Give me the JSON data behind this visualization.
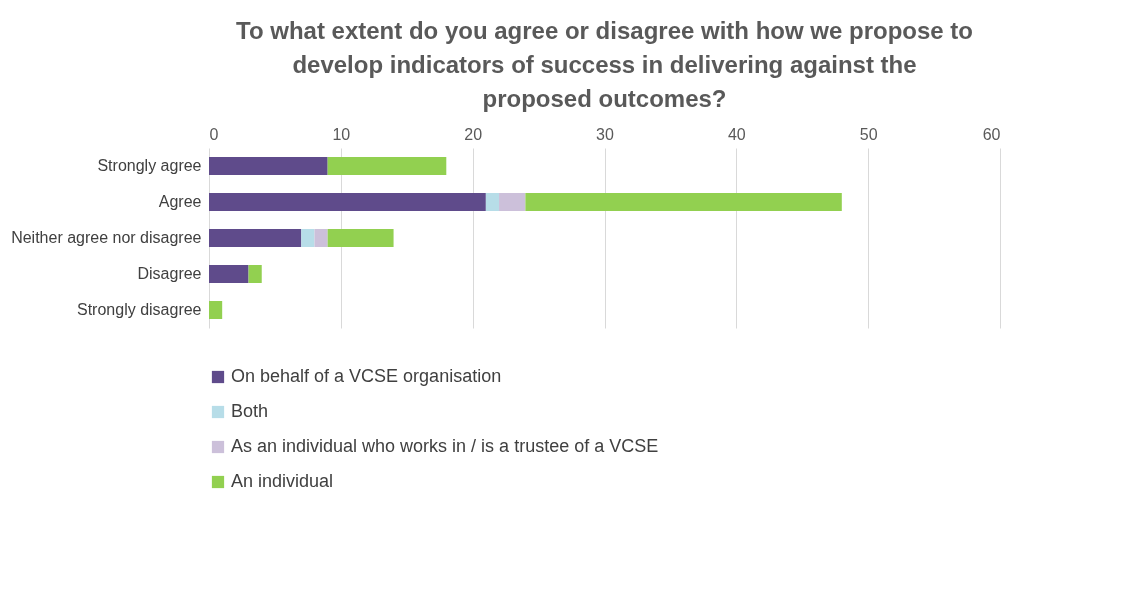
{
  "chart_data": {
    "type": "bar",
    "orientation": "horizontal",
    "stacked": true,
    "title": "To what extent do you agree or disagree with how we propose to develop indicators of success in delivering against the proposed outcomes?",
    "categories": [
      "Strongly agree",
      "Agree",
      "Neither agree nor disagree",
      "Disagree",
      "Strongly disagree"
    ],
    "series": [
      {
        "name": "On behalf of a VCSE organisation",
        "color": "#5f4b8b",
        "values": [
          9,
          21,
          7,
          3,
          0
        ]
      },
      {
        "name": "Both",
        "color": "#b7dde8",
        "values": [
          0,
          1,
          1,
          0,
          0
        ]
      },
      {
        "name": "As an individual who works in / is a trustee of a VCSE",
        "color": "#ccc0da",
        "values": [
          0,
          2,
          1,
          0,
          0
        ]
      },
      {
        "name": "An individual",
        "color": "#92d050",
        "values": [
          9,
          24,
          5,
          1,
          1
        ]
      }
    ],
    "xlim": [
      0,
      60
    ],
    "xticks": [
      0,
      10,
      20,
      30,
      40,
      50,
      60
    ],
    "grid": "x",
    "legend": "bottom"
  }
}
